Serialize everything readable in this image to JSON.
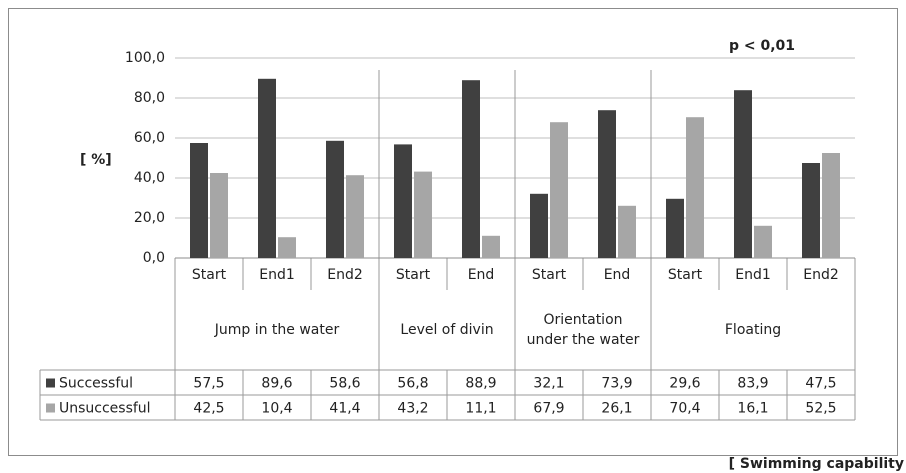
{
  "chart_data": {
    "type": "bar",
    "y_label": "[ %]",
    "annotation": "p < 0,01",
    "x_label": "[ Swimming capability",
    "groups": [
      {
        "name": "Jump in the water",
        "categories": [
          "Start",
          "End1",
          "End2"
        ]
      },
      {
        "name": "Level of divin",
        "categories": [
          "Start",
          "End"
        ]
      },
      {
        "name": "Orientation under the water",
        "categories": [
          "Start",
          "End"
        ]
      },
      {
        "name": "Floating",
        "categories": [
          "Start",
          "End1",
          "End2"
        ]
      }
    ],
    "series": [
      {
        "name": "Successful",
        "color": "#404040",
        "values": [
          57.5,
          89.6,
          58.6,
          56.8,
          88.9,
          32.1,
          73.9,
          29.6,
          83.9,
          47.5
        ],
        "value_labels": [
          "57,5",
          "89,6",
          "58,6",
          "56,8",
          "88,9",
          "32,1",
          "73,9",
          "29,6",
          "83,9",
          "47,5"
        ]
      },
      {
        "name": "Unsuccessful",
        "color": "#a6a6a6",
        "values": [
          42.5,
          10.4,
          41.4,
          43.2,
          11.1,
          67.9,
          26.1,
          70.4,
          16.1,
          52.5
        ],
        "value_labels": [
          "42,5",
          "10,4",
          "41,4",
          "43,2",
          "11,1",
          "67,9",
          "26,1",
          "70,4",
          "16,1",
          "52,5"
        ]
      }
    ],
    "ylim": [
      0,
      100
    ],
    "yticks": [
      {
        "value": 0,
        "label": "0,0"
      },
      {
        "value": 20,
        "label": "20,0"
      },
      {
        "value": 40,
        "label": "40,0"
      },
      {
        "value": 60,
        "label": "60,0"
      },
      {
        "value": 80,
        "label": "80,0"
      },
      {
        "value": 100,
        "label": "100,0"
      }
    ],
    "grid": true
  }
}
